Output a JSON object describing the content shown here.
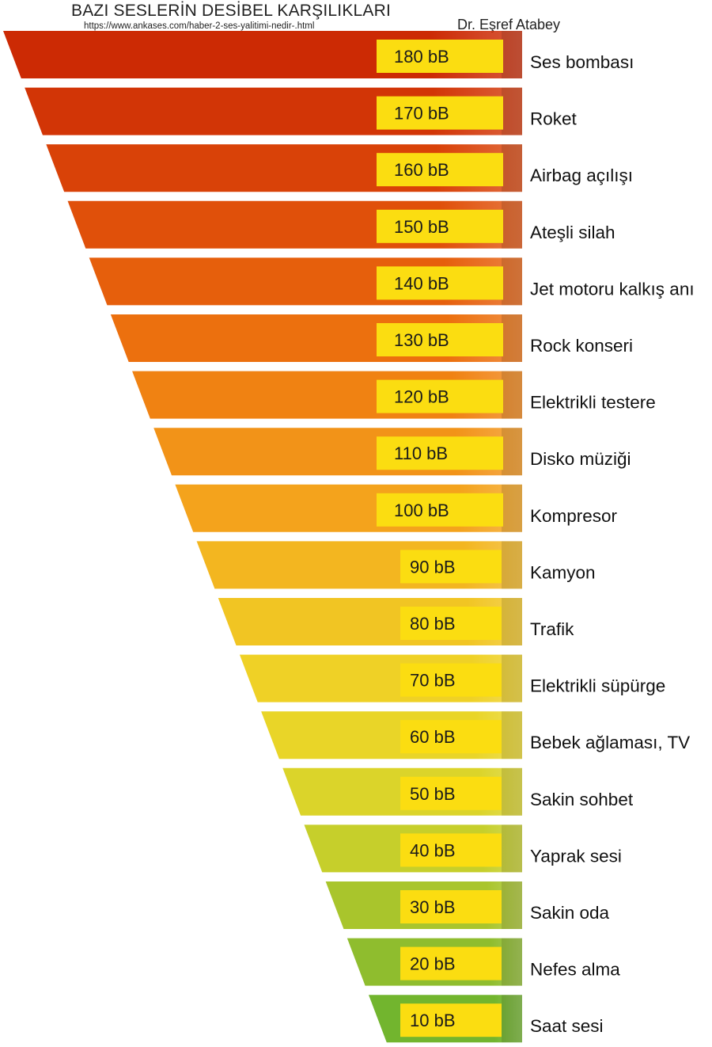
{
  "header": {
    "title": "BAZI SESLERİN DESİBEL KARŞILIKLARI",
    "source_url": "https://www.ankases.com/haber-2-ses-yalitimi-nedir-.html",
    "author": "Dr. Eşref Atabey"
  },
  "chart_data": {
    "type": "bar",
    "orientation": "horizontal-funnel",
    "title": "BAZI SESLERİN DESİBEL KARŞILIKLARI",
    "unit": "bB",
    "categories": [
      "Ses bombası",
      "Roket",
      "Airbag açılışı",
      "Ateşli silah",
      "Jet motoru kalkış anı",
      "Rock konseri",
      "Elektrikli testere",
      "Disko müziği",
      "Kompresor",
      "Kamyon",
      "Trafik",
      "Elektrikli süpürge",
      "Bebek ağlaması, TV",
      "Sakin sohbet",
      "Yaprak sesi",
      "Sakin oda",
      "Nefes alma",
      "Saat sesi"
    ],
    "values": [
      180,
      170,
      160,
      150,
      140,
      130,
      120,
      110,
      100,
      90,
      80,
      70,
      60,
      50,
      40,
      30,
      20,
      10
    ],
    "value_labels": [
      "180 bB",
      "170 bB",
      "160 bB",
      "150 bB",
      "140 bB",
      "130 bB",
      "120 bB",
      "110 bB",
      "100 bB",
      "90 bB",
      "80 bB",
      "70 bB",
      "60 bB",
      "50 bB",
      "40 bB",
      "30 bB",
      "20 bB",
      "10 bB"
    ],
    "colors": [
      "#cc2a04",
      "#d23506",
      "#d94208",
      "#e0500a",
      "#e65f0c",
      "#ec700e",
      "#f08212",
      "#f29318",
      "#f4a31c",
      "#f3b620",
      "#f1c523",
      "#efd126",
      "#e9d528",
      "#dbd42a",
      "#c6cf2b",
      "#a9c52c",
      "#8fbd2e",
      "#72b52e"
    ],
    "label_box_color": "#fbdd11",
    "legend": "none",
    "grid": false
  }
}
